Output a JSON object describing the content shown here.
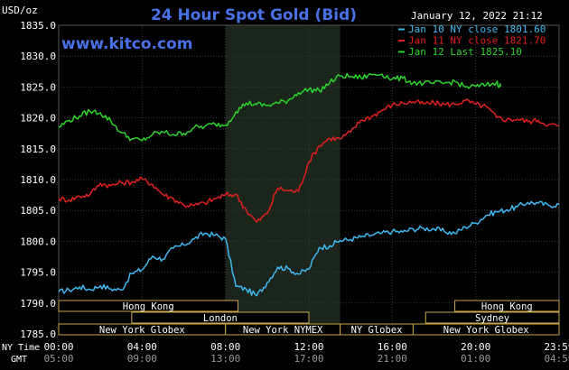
{
  "chart_data": {
    "type": "line",
    "title": "24 Hour Spot Gold (Bid)",
    "site": "www.kitco.com",
    "timestamp": "January 12, 2022 21:12",
    "y_unit_label": "USD/oz",
    "ylim": [
      1785.0,
      1835.0
    ],
    "y_ticks": [
      "1785.0",
      "1790.0",
      "1795.0",
      "1800.0",
      "1805.0",
      "1810.0",
      "1815.0",
      "1820.0",
      "1825.0",
      "1830.0",
      "1835.0"
    ],
    "x_range_hours": [
      0,
      24
    ],
    "ny_time_label": "NY Time",
    "gmt_label": "GMT",
    "ny_time_ticks": [
      "00:00",
      "04:00",
      "08:00",
      "12:00",
      "16:00",
      "20:00",
      "23:59"
    ],
    "gmt_ticks": [
      "05:00",
      "09:00",
      "13:00",
      "17:00",
      "21:00",
      "01:00",
      "04:59"
    ],
    "grid": true,
    "shaded_region_hours": [
      8.0,
      13.5
    ],
    "colors": {
      "background": "#000000",
      "shade": "#1c251c",
      "grid": "#3a3a3a",
      "axis_text": "#ffffff",
      "title": "#4a72e8",
      "site": "#4a72e8",
      "session_text": "#ffffff",
      "session_border": "#c8a84a"
    },
    "legend_position": "top-right",
    "series": [
      {
        "name": "Jan 10 NY close 1801.60",
        "color": "#3fb8f0",
        "x": [
          0.0,
          0.5,
          1.0,
          1.5,
          2.0,
          2.5,
          3.0,
          3.5,
          4.0,
          4.5,
          5.0,
          5.5,
          6.0,
          6.5,
          7.0,
          7.5,
          8.0,
          8.5,
          9.0,
          9.5,
          10.0,
          10.5,
          11.0,
          11.5,
          12.0,
          12.5,
          13.0,
          13.5,
          14.0,
          14.5,
          15.0,
          15.5,
          16.0,
          16.5,
          17.0,
          17.5,
          18.0,
          18.5,
          19.0,
          19.5,
          20.0,
          20.5,
          21.0,
          21.5,
          22.0,
          22.5,
          23.0,
          23.5,
          24.0
        ],
        "y": [
          1791.8,
          1792.1,
          1792.6,
          1792.2,
          1792.8,
          1792.3,
          1792.1,
          1794.8,
          1795.4,
          1797.6,
          1797.1,
          1798.9,
          1799.4,
          1800.4,
          1801.3,
          1801.0,
          1800.4,
          1792.7,
          1792.2,
          1791.2,
          1793.3,
          1795.8,
          1795.6,
          1794.7,
          1795.5,
          1799.0,
          1799.3,
          1800.1,
          1800.3,
          1800.7,
          1801.0,
          1801.3,
          1801.6,
          1801.5,
          1802.0,
          1802.1,
          1802.0,
          1801.6,
          1801.3,
          1802.3,
          1803.0,
          1804.2,
          1804.8,
          1805.1,
          1805.6,
          1806.3,
          1806.2,
          1805.8,
          1806.0
        ]
      },
      {
        "name": "Jan 11 NY close 1821.70",
        "color": "#e02020",
        "x": [
          0.0,
          0.5,
          1.0,
          1.5,
          2.0,
          2.5,
          3.0,
          3.5,
          4.0,
          4.5,
          5.0,
          5.5,
          6.0,
          6.5,
          7.0,
          7.5,
          8.0,
          8.5,
          9.0,
          9.5,
          10.0,
          10.5,
          11.0,
          11.5,
          12.0,
          12.5,
          13.0,
          13.5,
          14.0,
          14.5,
          15.0,
          15.5,
          16.0,
          16.5,
          17.0,
          17.5,
          18.0,
          18.5,
          19.0,
          19.5,
          20.0,
          20.5,
          21.0,
          21.5,
          22.0,
          22.5,
          23.0,
          23.5,
          24.0
        ],
        "y": [
          1806.9,
          1806.7,
          1807.3,
          1807.6,
          1809.4,
          1809.0,
          1809.5,
          1809.6,
          1810.1,
          1809.2,
          1807.6,
          1806.9,
          1805.9,
          1805.8,
          1806.2,
          1806.9,
          1807.5,
          1807.6,
          1805.0,
          1803.1,
          1804.5,
          1808.6,
          1808.2,
          1808.1,
          1812.9,
          1815.5,
          1816.7,
          1816.6,
          1817.7,
          1819.6,
          1820.2,
          1821.2,
          1822.1,
          1822.4,
          1822.6,
          1822.3,
          1822.4,
          1822.2,
          1822.2,
          1822.8,
          1822.2,
          1821.8,
          1820.1,
          1819.7,
          1819.8,
          1819.4,
          1819.6,
          1818.9,
          1818.7
        ]
      },
      {
        "name": "Jan 12 Last 1825.10",
        "color": "#2ad42a",
        "x": [
          0.0,
          0.5,
          1.0,
          1.5,
          2.0,
          2.5,
          3.0,
          3.5,
          4.0,
          4.5,
          5.0,
          5.5,
          6.0,
          6.5,
          7.0,
          7.5,
          8.0,
          8.5,
          9.0,
          9.5,
          10.0,
          10.5,
          11.0,
          11.5,
          12.0,
          12.5,
          13.0,
          13.5,
          14.0,
          14.5,
          15.0,
          15.5,
          16.0,
          16.5,
          17.0,
          17.5,
          18.0,
          18.5,
          19.0,
          19.5,
          20.0,
          20.5,
          21.0,
          21.2
        ],
        "y": [
          1818.5,
          1819.6,
          1820.3,
          1821.1,
          1820.8,
          1819.5,
          1817.6,
          1816.6,
          1816.3,
          1817.3,
          1817.7,
          1817.3,
          1817.5,
          1818.4,
          1818.6,
          1819.0,
          1818.8,
          1821.0,
          1822.4,
          1822.2,
          1822.0,
          1822.4,
          1822.8,
          1824.1,
          1824.6,
          1824.4,
          1825.7,
          1826.8,
          1826.7,
          1826.5,
          1827.0,
          1827.1,
          1826.3,
          1826.4,
          1825.7,
          1825.6,
          1825.6,
          1825.6,
          1825.9,
          1825.0,
          1825.1,
          1825.3,
          1825.7,
          1825.1
        ]
      }
    ],
    "sessions": [
      {
        "label": "Hong Kong",
        "start": 0.0,
        "end": 8.6,
        "row": 0
      },
      {
        "label": "Hong Kong",
        "start": 19.0,
        "end": 24.0,
        "row": 0
      },
      {
        "label": "London",
        "start": 3.5,
        "end": 12.0,
        "row": 1
      },
      {
        "label": "Sydney",
        "start": 17.6,
        "end": 24.0,
        "row": 1
      },
      {
        "label": "New York Globex",
        "start": 0.0,
        "end": 8.0,
        "row": 2
      },
      {
        "label": "New York NYMEX",
        "start": 8.0,
        "end": 13.5,
        "row": 2
      },
      {
        "label": "NY Globex",
        "start": 13.5,
        "end": 17.0,
        "row": 2
      },
      {
        "label": "New York Globex",
        "start": 17.0,
        "end": 24.0,
        "row": 2
      }
    ]
  }
}
